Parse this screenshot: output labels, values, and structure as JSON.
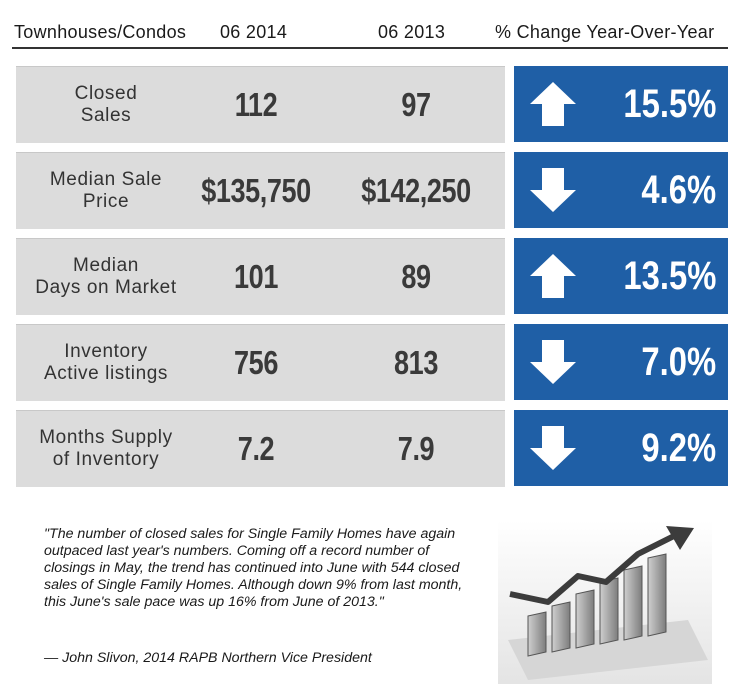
{
  "header": {
    "category": "Townhouses/Condos",
    "col1": "06 2014",
    "col2": "06 2013",
    "col3": "% Change Year-Over-Year"
  },
  "rows": [
    {
      "label": "Closed\nSales",
      "v2014": "112",
      "v2013": "97",
      "direction": "up",
      "change": "15.5%"
    },
    {
      "label": "Median Sale\nPrice",
      "v2014": "$135,750",
      "v2013": "$142,250",
      "direction": "down",
      "change": "4.6%"
    },
    {
      "label": "Median\nDays on Market",
      "v2014": "101",
      "v2013": "89",
      "direction": "up",
      "change": "13.5%"
    },
    {
      "label": "Inventory\nActive listings",
      "v2014": "756",
      "v2013": "813",
      "direction": "down",
      "change": "7.0%"
    },
    {
      "label": "Months Supply\nof Inventory",
      "v2014": "7.2",
      "v2013": "7.9",
      "direction": "down",
      "change": "9.2%"
    }
  ],
  "quote": "\"The number of closed sales for Single Family Homes have again outpaced last year's numbers. Coming off a record number of closings in May, the trend has continued into June with 544 closed sales of Single Family Homes. Although down 9% from last month, this June's sale pace was up 16% from June of 2013.\"",
  "attribution": "— John Slivon, 2014 RAPB Northern Vice President",
  "colors": {
    "accent": "#1f5fa6",
    "panel": "#dcdcdc"
  },
  "graphic_icon": "rising-bar-graph-icon"
}
